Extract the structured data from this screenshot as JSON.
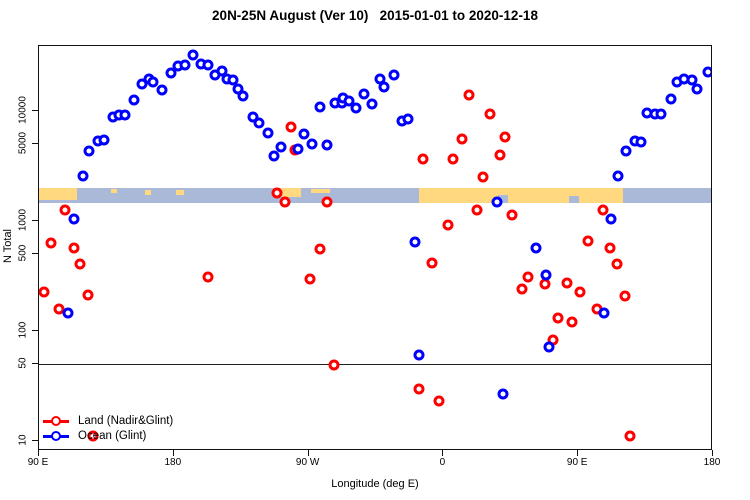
{
  "title": "20N-25N August (Ver 10)   2015-01-01 to 2020-12-18",
  "axes": {
    "x_label": "Longitude (deg E)",
    "y_label": "N Total",
    "x_ticks": [
      {
        "value": 90,
        "label": "90 E"
      },
      {
        "value": 180,
        "label": "180"
      },
      {
        "value": 270,
        "label": "90 W"
      },
      {
        "value": 360,
        "label": "0"
      },
      {
        "value": 450,
        "label": "90 E"
      },
      {
        "value": 540,
        "label": "180"
      }
    ],
    "y_ticks": [
      {
        "value": 10,
        "label": "10"
      },
      {
        "value": 50,
        "label": "50"
      },
      {
        "value": 100,
        "label": "100"
      },
      {
        "value": 500,
        "label": "500"
      },
      {
        "value": 1000,
        "label": "1000"
      },
      {
        "value": 5000,
        "label": "5000"
      },
      {
        "value": 10000,
        "label": "10000"
      }
    ],
    "y_scale": "log10"
  },
  "reference_line": {
    "y_value": 50,
    "color": "#222222"
  },
  "legend": {
    "items": [
      {
        "label": "Land (Nadir&Glint)",
        "color": "#ff0000"
      },
      {
        "label": "Ocean (Glint)",
        "color": "#0000ff"
      }
    ]
  },
  "map_band": {
    "description": "world land/ocean strip for 20N-25N drawn across the plot",
    "ocean_color": "#aab9d8",
    "land_color": "#ffd880",
    "y_top_value": 2000,
    "y_bottom_value": 1450,
    "land_segments": [
      {
        "a0": 90,
        "a1": 115.5,
        "t": 0,
        "h": 0.8
      },
      {
        "a0": 138,
        "a1": 142,
        "t": 0.1,
        "h": 0.25
      },
      {
        "a0": 160.8,
        "a1": 164.8,
        "t": 0.15,
        "h": 0.3
      },
      {
        "a0": 181.5,
        "a1": 186.8,
        "t": 0.15,
        "h": 0.3
      },
      {
        "a0": 247,
        "a1": 265,
        "t": 0,
        "h": 0.62
      },
      {
        "a0": 271.6,
        "a1": 284,
        "t": 0.05,
        "h": 0.27
      },
      {
        "a0": 343.7,
        "a1": 480,
        "t": 0,
        "h": 1
      }
    ],
    "ocean_notches": [
      {
        "a0": 396.5,
        "a1": 403,
        "t": 0.45,
        "h": 0.55
      },
      {
        "a0": 444,
        "a1": 450.5,
        "t": 0.5,
        "h": 0.5
      }
    ]
  },
  "chart_data": {
    "type": "scatter",
    "title": "20N-25N August (Ver 10)   2015-01-01 to 2020-12-18",
    "xlabel": "Longitude (deg E)",
    "ylabel": "N Total",
    "x_axis_note": "longitude unwrapped eastward: 90=90E, 180=180, 270=90W, 360=0, 450=90E, 540=180",
    "x_range": [
      90,
      540
    ],
    "y_range": [
      8,
      39000
    ],
    "legend_position": "bottom-left",
    "series": [
      {
        "name": "Land (Nadir&Glint)",
        "color": "#ff0000",
        "points": [
          [
            258.3,
            7150
          ],
          [
            261.2,
            4400
          ],
          [
            249.1,
            1800
          ],
          [
            254.3,
            1500
          ],
          [
            282.5,
            1500
          ],
          [
            277.6,
            560
          ],
          [
            271,
            295
          ],
          [
            202.6,
            312
          ],
          [
            286.8,
            49
          ],
          [
            346.6,
            3680
          ],
          [
            366.2,
            3660
          ],
          [
            372.4,
            5530
          ],
          [
            377.3,
            13900
          ],
          [
            386.3,
            2510
          ],
          [
            391.1,
            9330
          ],
          [
            401.1,
            5800
          ],
          [
            398,
            3950
          ],
          [
            382.2,
            1260
          ],
          [
            362.9,
            914
          ],
          [
            352.4,
            412
          ],
          [
            405.6,
            1130
          ],
          [
            466.4,
            1250
          ],
          [
            456.8,
            658
          ],
          [
            471.5,
            571
          ],
          [
            476,
            409
          ],
          [
            416.7,
            312
          ],
          [
            412.3,
            239
          ],
          [
            427.9,
            266
          ],
          [
            442.5,
            275
          ],
          [
            451.4,
            226
          ],
          [
            481.5,
            208
          ],
          [
            462.6,
            160
          ],
          [
            436.3,
            132
          ],
          [
            445.9,
            121
          ],
          [
            433,
            83
          ],
          [
            107.6,
            1250
          ],
          [
            98,
            635
          ],
          [
            113.2,
            571
          ],
          [
            117.6,
            404
          ],
          [
            93.5,
            226
          ],
          [
            122.5,
            211
          ],
          [
            103.2,
            157
          ],
          [
            344,
            30
          ],
          [
            356.9,
            23
          ],
          [
            484.7,
            11
          ],
          [
            125.9,
            11
          ]
        ]
      },
      {
        "name": "Ocean (Glint)",
        "color": "#0000ff",
        "points": [
          [
            119.2,
            2560
          ],
          [
            123.4,
            4330
          ],
          [
            129.2,
            5330
          ],
          [
            133.4,
            5450
          ],
          [
            139.2,
            8810
          ],
          [
            143.4,
            9200
          ],
          [
            147.4,
            9200
          ],
          [
            153.4,
            12500
          ],
          [
            158.8,
            17700
          ],
          [
            163.2,
            19400
          ],
          [
            166.3,
            18400
          ],
          [
            172.1,
            15400
          ],
          [
            178.1,
            22300
          ],
          [
            182.6,
            25700
          ],
          [
            187.5,
            26200
          ],
          [
            193,
            32300
          ],
          [
            198.2,
            26900
          ],
          [
            202.6,
            26000
          ],
          [
            207.7,
            21100
          ],
          [
            212,
            23100
          ],
          [
            215.3,
            19700
          ],
          [
            219.7,
            19000
          ],
          [
            222.7,
            16000
          ],
          [
            226.4,
            13600
          ],
          [
            232.7,
            8810
          ],
          [
            236.7,
            7840
          ],
          [
            242.7,
            6350
          ],
          [
            247.1,
            3900
          ],
          [
            251.6,
            4710
          ],
          [
            262.7,
            4490
          ],
          [
            266.7,
            6230
          ],
          [
            272.3,
            5040
          ],
          [
            282.3,
            4880
          ],
          [
            277.6,
            10900
          ],
          [
            287.9,
            11700
          ],
          [
            292.3,
            11900
          ],
          [
            293.2,
            13100
          ],
          [
            297.2,
            12300
          ],
          [
            301.7,
            10700
          ],
          [
            307.2,
            14400
          ],
          [
            312.4,
            11500
          ],
          [
            317.7,
            19400
          ],
          [
            320.6,
            16500
          ],
          [
            326.8,
            21300
          ],
          [
            332.4,
            8110
          ],
          [
            336.2,
            8400
          ],
          [
            341.1,
            649
          ],
          [
            344,
            60
          ],
          [
            395.8,
            1490
          ],
          [
            400,
            27
          ],
          [
            421.8,
            565
          ],
          [
            428.5,
            321
          ],
          [
            430.8,
            72
          ],
          [
            467,
            147
          ],
          [
            471.9,
            1040
          ],
          [
            476.8,
            2560
          ],
          [
            482,
            4330
          ],
          [
            488,
            5330
          ],
          [
            492,
            5280
          ],
          [
            496,
            9530
          ],
          [
            501.3,
            9330
          ],
          [
            505.3,
            9400
          ],
          [
            512,
            12800
          ],
          [
            516,
            18400
          ],
          [
            520.9,
            19400
          ],
          [
            525.8,
            19000
          ],
          [
            529.3,
            16000
          ],
          [
            536.5,
            22600
          ],
          [
            113.6,
            1040
          ],
          [
            109.2,
            147
          ]
        ]
      }
    ]
  }
}
